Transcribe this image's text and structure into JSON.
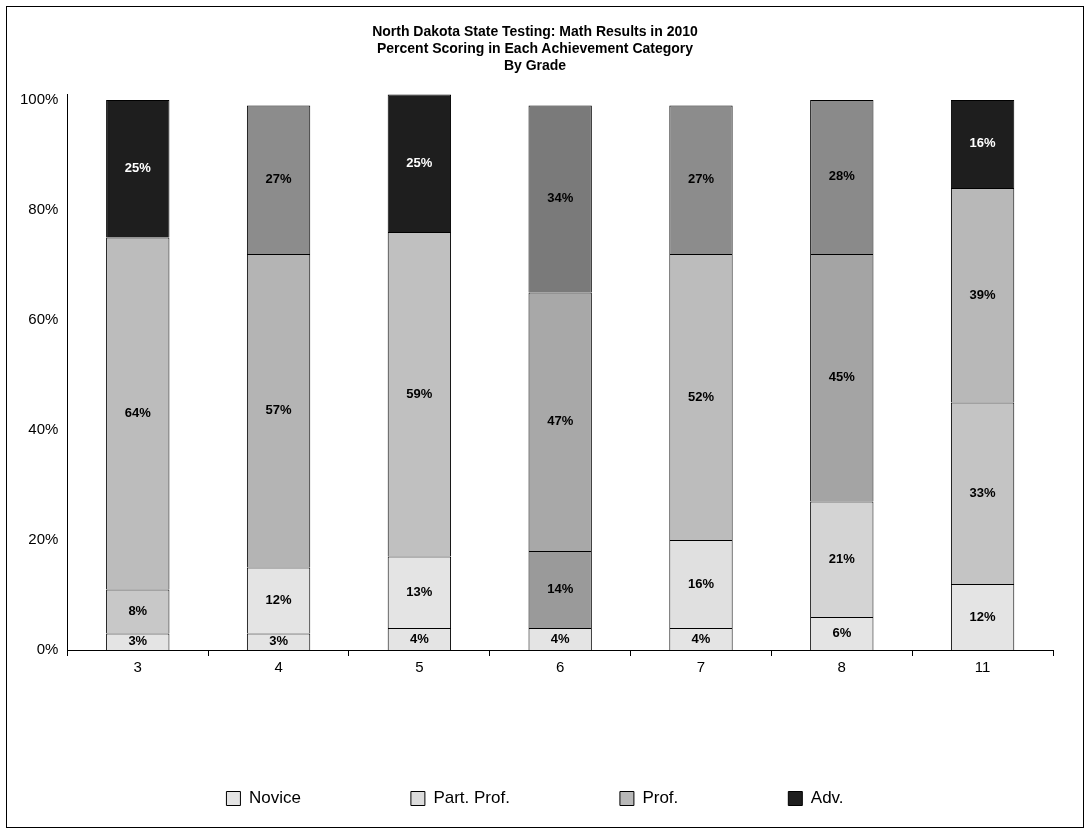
{
  "chart_data": {
    "type": "bar",
    "stacked": true,
    "title": "North Dakota State Testing: Math Results in 2010",
    "subtitle": "Percent Scoring in Each Achievement Category\nBy Grade",
    "categories": [
      "3",
      "4",
      "5",
      "6",
      "7",
      "8",
      "11"
    ],
    "series": [
      {
        "name": "Novice",
        "color": "#e4e4e4",
        "values": [
          3,
          3,
          4,
          4,
          4,
          6,
          12
        ],
        "value_labels": [
          "3%",
          "3%",
          "4%",
          "4%",
          "4%",
          "6%",
          "12%"
        ]
      },
      {
        "name": "Part. Prof.",
        "color": "#dcdcdc",
        "colors": [
          "#c8c8c8",
          "#e4e4e4",
          "#e4e4e4",
          "#9a9a9a",
          "#e0e0e0",
          "#d4d4d4",
          "#c4c4c4"
        ],
        "values": [
          8,
          12,
          13,
          14,
          16,
          21,
          33
        ],
        "value_labels": [
          "8%",
          "12%",
          "13%",
          "14%",
          "16%",
          "21%",
          "33%"
        ]
      },
      {
        "name": "Prof.",
        "color": "#b8b8b8",
        "colors": [
          "#bcbcbc",
          "#b4b4b4",
          "#c0c0c0",
          "#a8a8a8",
          "#bcbcbc",
          "#a4a4a4",
          "#b8b8b8"
        ],
        "values": [
          64,
          57,
          59,
          47,
          52,
          45,
          39
        ],
        "value_labels": [
          "64%",
          "57%",
          "59%",
          "47%",
          "52%",
          "45%",
          "39%"
        ]
      },
      {
        "name": "Adv.",
        "color": "#1e1e1e",
        "colors": [
          "#1e1e1e",
          "#8c8c8c",
          "#1e1e1e",
          "#7a7a7a",
          "#8c8c8c",
          "#8a8a8a",
          "#1e1e1e"
        ],
        "values": [
          25,
          27,
          25,
          34,
          27,
          28,
          16
        ],
        "value_labels": [
          "25%",
          "27%",
          "25%",
          "34%",
          "27%",
          "28%",
          "16%"
        ]
      }
    ],
    "ylim": [
      0,
      101
    ],
    "yticks": [
      {
        "value": 0,
        "label": "0%"
      },
      {
        "value": 20,
        "label": "20%"
      },
      {
        "value": 40,
        "label": "40%"
      },
      {
        "value": 60,
        "label": "60%"
      },
      {
        "value": 80,
        "label": "80%"
      },
      {
        "value": 100,
        "label": "100%"
      }
    ],
    "grid": false,
    "legend": "bottom"
  }
}
